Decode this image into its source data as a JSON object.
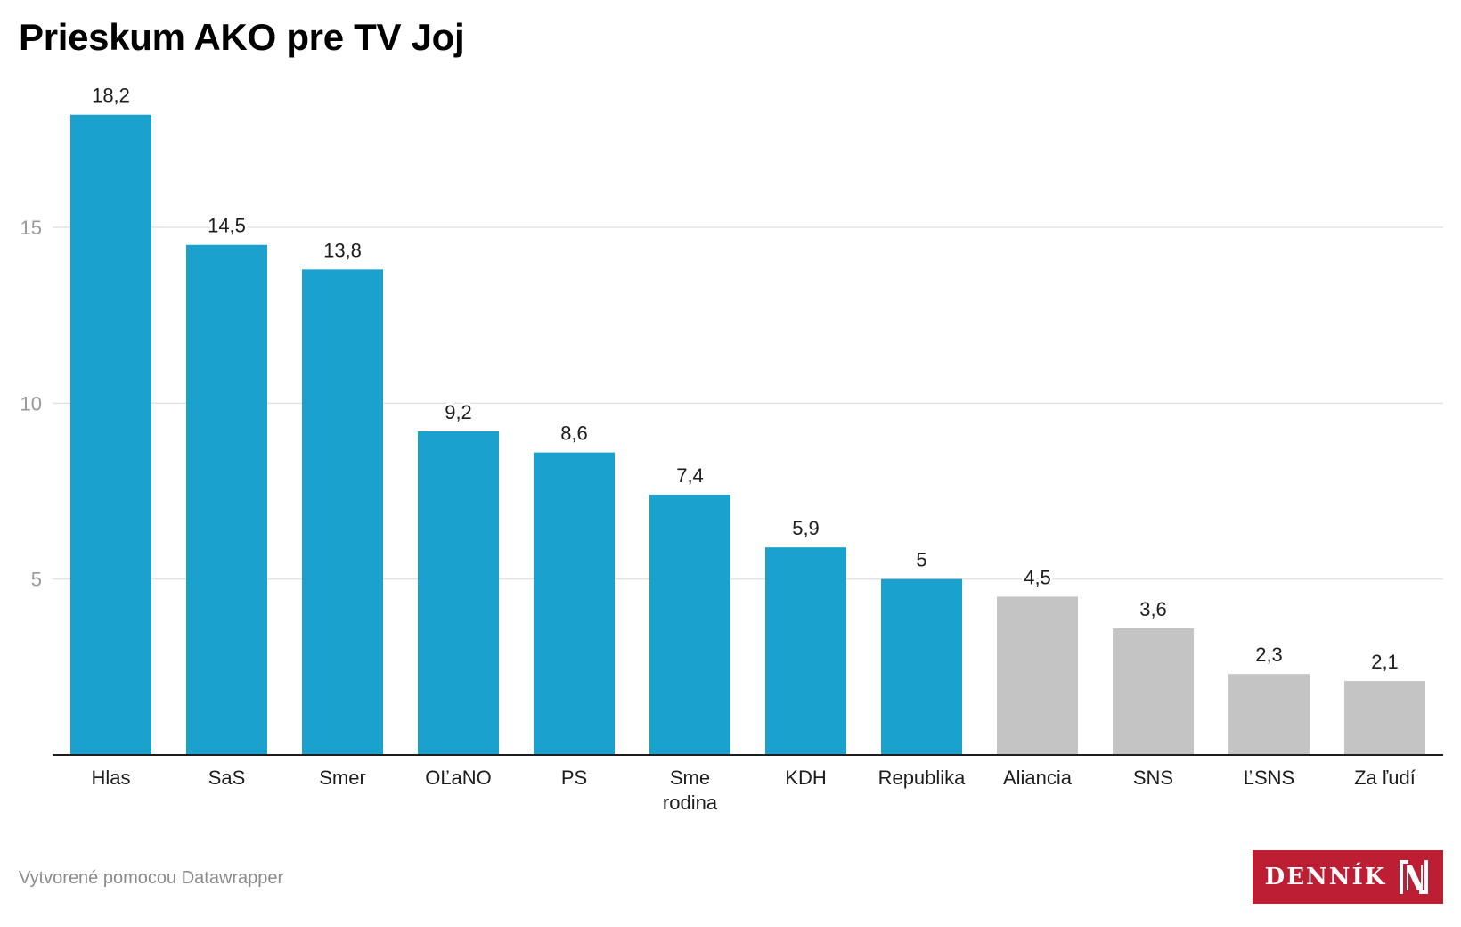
{
  "chart_data": {
    "type": "bar",
    "title": "Prieskum AKO pre TV Joj",
    "xlabel": "",
    "ylabel": "",
    "ylim": [
      0,
      18.2
    ],
    "yticks": [
      5,
      10,
      15
    ],
    "ytick_labels": [
      "5",
      "10",
      "15"
    ],
    "grid": true,
    "categories": [
      "Hlas",
      "SaS",
      "Smer",
      "OĽaNO",
      "PS",
      "Sme rodina",
      "KDH",
      "Republika",
      "Aliancia",
      "SNS",
      "ĽSNS",
      "Za ľudí"
    ],
    "category_lines": [
      [
        "Hlas"
      ],
      [
        "SaS"
      ],
      [
        "Smer"
      ],
      [
        "OĽaNO"
      ],
      [
        "PS"
      ],
      [
        "Sme",
        "rodina"
      ],
      [
        "KDH"
      ],
      [
        "Republika"
      ],
      [
        "Aliancia"
      ],
      [
        "SNS"
      ],
      [
        "ĽSNS"
      ],
      [
        "Za ľudí"
      ]
    ],
    "values": [
      18.2,
      14.5,
      13.8,
      9.2,
      8.6,
      7.4,
      5.9,
      5,
      4.5,
      3.6,
      2.3,
      2.1
    ],
    "value_labels": [
      "18,2",
      "14,5",
      "13,8",
      "9,2",
      "8,6",
      "7,4",
      "5,9",
      "5",
      "4,5",
      "3,6",
      "2,3",
      "2,1"
    ],
    "highlighted": [
      true,
      true,
      true,
      true,
      true,
      true,
      true,
      true,
      false,
      false,
      false,
      false
    ],
    "colors": {
      "highlight": "#1aa1cd",
      "muted": "#c4c4c4",
      "grid": "#e2e2e2",
      "axis": "#1d1d1d"
    }
  },
  "footer": {
    "credit": "Vytvorené pomocou Datawrapper"
  },
  "logo": {
    "text": "DENNÍK",
    "mark": "N"
  }
}
